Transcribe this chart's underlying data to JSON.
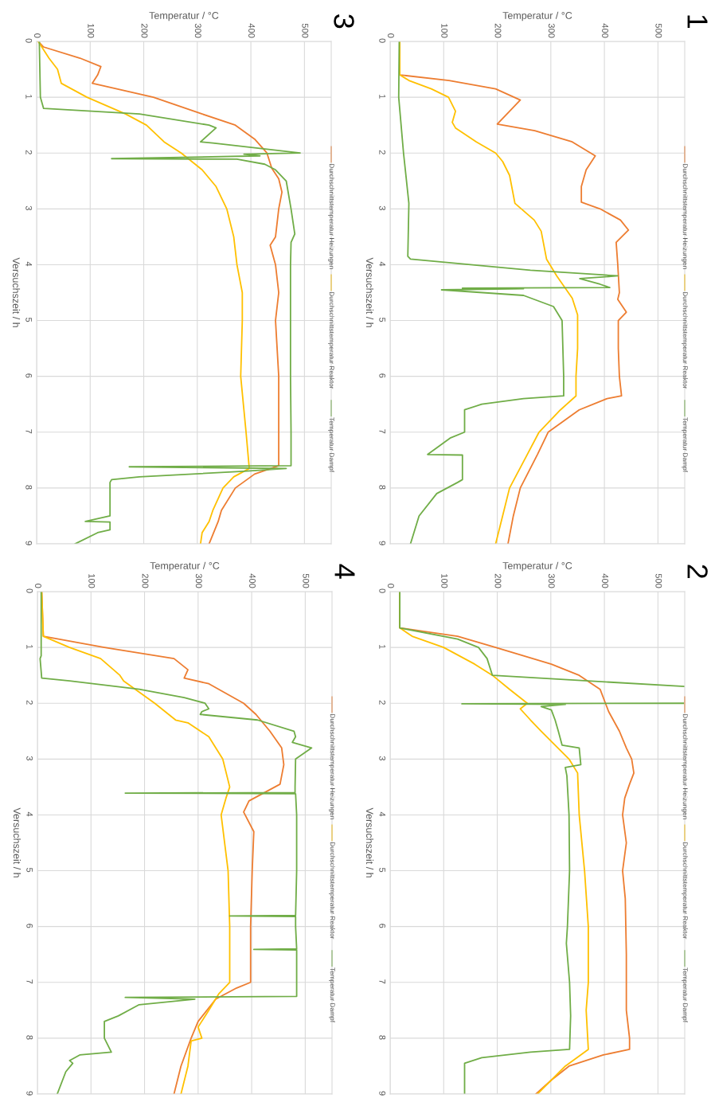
{
  "chart_data": [
    {
      "type": "line",
      "title": "1",
      "xlabel": "Temperatur / °C",
      "ylabel": "Versuchszeit / h",
      "xlim": [
        0,
        550
      ],
      "xticks": [
        0,
        100,
        200,
        300,
        400,
        500
      ],
      "ylim": [
        9,
        0
      ],
      "yticks": [
        0,
        1,
        2,
        3,
        4,
        5,
        6,
        7,
        8,
        9
      ],
      "grid": true,
      "legend": "right",
      "series": [
        {
          "name": "Durchschnittstemperatur Heizungen",
          "color": "#ed7d31",
          "values": [
            0,
            0.6,
            0.7,
            0.85,
            1.05,
            1.48,
            1.6,
            1.8,
            2.05,
            2.3,
            2.6,
            2.88,
            3.0,
            3.2,
            3.38,
            3.6,
            4.0,
            4.5,
            4.62,
            4.85,
            5.0,
            5.5,
            6.0,
            6.35,
            6.4,
            6.6,
            7.0,
            7.4,
            8.0,
            8.5,
            9.0
          ],
          "x": [
            18,
            18,
            110,
            197,
            243,
            200,
            270,
            340,
            383,
            366,
            357,
            357,
            392,
            430,
            445,
            422,
            425,
            428,
            425,
            441,
            426,
            426,
            428,
            432,
            405,
            353,
            295,
            275,
            243,
            230,
            220
          ]
        },
        {
          "name": "Durchschnittstemperatur Reaktor",
          "color": "#ffc000",
          "values": [
            0,
            0.6,
            0.7,
            0.85,
            1.0,
            1.25,
            1.45,
            1.55,
            1.8,
            2.0,
            2.15,
            2.4,
            2.9,
            3.2,
            3.4,
            3.9,
            4.2,
            4.6,
            4.9,
            5.5,
            6.0,
            6.35,
            6.6,
            7.0,
            7.4,
            8.0,
            8.5,
            9.0
          ],
          "x": [
            18,
            18,
            35,
            77,
            109,
            122,
            116,
            122,
            161,
            197,
            210,
            223,
            233,
            269,
            282,
            292,
            311,
            340,
            350,
            350,
            347,
            347,
            318,
            278,
            256,
            223,
            210,
            197
          ]
        },
        {
          "name": "Temperatur Dampf",
          "color": "#70ad47",
          "values": [
            0,
            1.0,
            2.0,
            2.9,
            3.85,
            3.9,
            4.1,
            4.2,
            4.25,
            4.35,
            4.41,
            4.42,
            4.43,
            4.45,
            4.55,
            4.75,
            5.0,
            6.0,
            6.35,
            6.4,
            6.5,
            6.6,
            7.0,
            7.1,
            7.4,
            7.41,
            7.85,
            7.9,
            8.1,
            8.5,
            9.0
          ],
          "x": [
            17,
            16,
            25,
            35,
            33,
            38,
            262,
            425,
            354,
            392,
            410,
            135,
            249,
            96,
            249,
            305,
            321,
            324,
            324,
            249,
            171,
            139,
            139,
            113,
            70,
            135,
            135,
            126,
            87,
            54,
            38
          ]
        }
      ]
    },
    {
      "type": "line",
      "title": "2",
      "xlabel": "Temperatur / °C",
      "ylabel": "Versuchszeit / h",
      "xlim": [
        0,
        550
      ],
      "xticks": [
        0,
        100,
        200,
        300,
        400,
        500
      ],
      "ylim": [
        9,
        0
      ],
      "yticks": [
        0,
        1,
        2,
        3,
        4,
        5,
        6,
        7,
        8,
        9
      ],
      "grid": true,
      "legend": "right",
      "series": [
        {
          "name": "Durchschnittstemperatur Heizungen",
          "color": "#ed7d31",
          "values": [
            0,
            0.65,
            0.8,
            1.0,
            1.3,
            1.5,
            1.75,
            2.0,
            2.15,
            2.5,
            2.8,
            3.0,
            3.25,
            3.45,
            3.7,
            4.0,
            4.5,
            5.0,
            5.5,
            6.5,
            7.5,
            8.0,
            8.2,
            8.3,
            8.5,
            8.75,
            9.0
          ],
          "x": [
            18,
            18,
            126,
            197,
            301,
            353,
            392,
            402,
            408,
            428,
            441,
            451,
            455,
            447,
            438,
            434,
            441,
            434,
            439,
            441,
            441,
            447,
            447,
            398,
            334,
            301,
            272
          ]
        },
        {
          "name": "Durchschnittstemperatur Reaktor",
          "color": "#ffc000",
          "values": [
            0,
            0.65,
            0.8,
            1.0,
            1.3,
            1.5,
            1.75,
            2.0,
            2.1,
            2.3,
            2.5,
            2.75,
            3.0,
            3.25,
            4.0,
            5.0,
            6.0,
            7.0,
            7.5,
            8.2,
            8.5,
            9.0
          ],
          "x": [
            18,
            18,
            41,
            100,
            158,
            191,
            223,
            256,
            243,
            262,
            282,
            308,
            334,
            350,
            353,
            363,
            370,
            370,
            366,
            370,
            327,
            275
          ]
        },
        {
          "name": "Temperatur Dampf",
          "color": "#70ad47",
          "values": [
            0,
            0.65,
            0.85,
            1.0,
            1.2,
            1.5,
            1.7,
            null,
            2.0,
            2.01,
            2.02,
            2.06,
            2.12,
            2.3,
            2.5,
            2.75,
            2.8,
            3.1,
            3.15,
            3.3,
            4.0,
            5.0,
            6.0,
            6.3,
            7.0,
            7.6,
            8.2,
            8.25,
            8.35,
            8.45,
            9.0
          ],
          "x": [
            18,
            18,
            126,
            165,
            181,
            191,
            550,
            null,
            550,
            134,
            327,
            282,
            301,
            308,
            314,
            321,
            353,
            356,
            327,
            330,
            334,
            335,
            331,
            329,
            335,
            337,
            335,
            262,
            171,
            139,
            139
          ]
        }
      ]
    },
    {
      "type": "line",
      "title": "3",
      "xlabel": "Temperatur / °C",
      "ylabel": "Versuchszeit / h",
      "xlim": [
        0,
        550
      ],
      "xticks": [
        0,
        100,
        200,
        300,
        400,
        500
      ],
      "ylim": [
        9,
        0
      ],
      "yticks": [
        0,
        1,
        2,
        3,
        4,
        5,
        6,
        7,
        8,
        9
      ],
      "grid": true,
      "legend": "right",
      "series": [
        {
          "name": "Durchschnittstemperatur Heizungen",
          "color": "#ed7d31",
          "values": [
            0,
            0.1,
            0.3,
            0.45,
            0.6,
            0.75,
            0.8,
            1.0,
            1.3,
            1.5,
            1.75,
            2.0,
            2.27,
            2.46,
            2.7,
            3.0,
            3.5,
            3.65,
            4.0,
            4.5,
            5.0,
            5.5,
            6.0,
            7.0,
            7.6,
            7.75,
            8.0,
            8.4,
            8.6,
            9.0
          ],
          "x": [
            3,
            13,
            81,
            120,
            114,
            104,
            127,
            218,
            309,
            371,
            407,
            430,
            439,
            452,
            458,
            452,
            446,
            436,
            446,
            452,
            446,
            449,
            452,
            452,
            452,
            407,
            371,
            345,
            339,
            322
          ]
        },
        {
          "name": "Durchschnittstemperatur Reaktor",
          "color": "#ffc000",
          "values": [
            0,
            0.3,
            0.5,
            0.75,
            1.0,
            1.3,
            1.5,
            1.8,
            2.0,
            2.3,
            2.6,
            3.0,
            3.5,
            4.0,
            4.5,
            5.0,
            6.0,
            7.0,
            7.65,
            7.8,
            8.0,
            8.4,
            8.6,
            8.8,
            9.0
          ],
          "x": [
            3,
            23,
            39,
            46,
            94,
            166,
            205,
            238,
            270,
            309,
            335,
            355,
            368,
            374,
            384,
            384,
            381,
            391,
            397,
            368,
            348,
            329,
            322,
            309,
            306
          ]
        },
        {
          "name": "Temperatur Dampf",
          "color": "#70ad47",
          "values": [
            0,
            1.0,
            1.2,
            1.3,
            1.5,
            1.55,
            1.8,
            1.82,
            2.0,
            2.02,
            2.05,
            2.1,
            2.11,
            2.2,
            2.3,
            2.5,
            3.0,
            3.45,
            3.6,
            4.0,
            5.0,
            6.0,
            7.0,
            7.6,
            7.62,
            7.65,
            7.7,
            7.8,
            7.85,
            7.9,
            8.5,
            8.6,
            8.61,
            8.75,
            8.8,
            9.0
          ],
          "x": [
            5,
            7,
            13,
            192,
            322,
            335,
            306,
            329,
            492,
            387,
            417,
            140,
            374,
            426,
            446,
            466,
            475,
            482,
            475,
            474,
            474,
            474,
            475,
            475,
            173,
            466,
            387,
            192,
            140,
            137,
            137,
            91,
            137,
            137,
            114,
            72
          ]
        }
      ]
    },
    {
      "type": "line",
      "title": "4",
      "xlabel": "Temperatur / °C",
      "ylabel": "Versuchszeit / h",
      "xlim": [
        0,
        550
      ],
      "xticks": [
        0,
        100,
        200,
        300,
        400,
        500
      ],
      "ylim": [
        9,
        0
      ],
      "yticks": [
        0,
        1,
        2,
        3,
        4,
        5,
        6,
        7,
        8,
        9
      ],
      "grid": true,
      "legend": "right",
      "series": [
        {
          "name": "Durchschnittstemperatur Heizungen",
          "color": "#ed7d31",
          "values": [
            0,
            0.8,
            1.0,
            1.2,
            1.4,
            1.55,
            1.65,
            2.0,
            2.2,
            2.5,
            2.8,
            3.1,
            3.45,
            3.6,
            3.75,
            3.95,
            4.3,
            5.0,
            6.0,
            7.0,
            7.1,
            7.3,
            7.7,
            8.0,
            8.5,
            9.0
          ],
          "x": [
            8,
            11,
            125,
            255,
            281,
            274,
            320,
            385,
            408,
            434,
            456,
            460,
            453,
            424,
            395,
            385,
            404,
            401,
            398,
            398,
            372,
            333,
            300,
            287,
            268,
            255
          ]
        },
        {
          "name": "Durchschnittstemperatur Reaktor",
          "color": "#ffc000",
          "values": [
            0,
            0.8,
            1.0,
            1.2,
            1.5,
            1.6,
            2.0,
            2.3,
            2.35,
            2.6,
            3.0,
            3.5,
            3.7,
            4.0,
            5.0,
            6.0,
            7.0,
            7.2,
            7.5,
            7.8,
            8.0,
            8.05,
            8.5,
            9.0
          ],
          "x": [
            8,
            11,
            60,
            118,
            154,
            161,
            219,
            258,
            281,
            320,
            346,
            359,
            352,
            343,
            356,
            359,
            359,
            339,
            320,
            300,
            307,
            287,
            281,
            268
          ]
        },
        {
          "name": "Temperatur Dampf",
          "color": "#70ad47",
          "values": [
            0,
            1.15,
            1.2,
            1.55,
            1.6,
            1.75,
            1.9,
            2.0,
            2.1,
            2.15,
            2.2,
            2.3,
            2.5,
            2.6,
            2.7,
            2.8,
            3.0,
            3.5,
            3.6,
            3.61,
            3.62,
            4.0,
            5.0,
            5.8,
            5.81,
            5.82,
            6.0,
            6.4,
            6.41,
            6.42,
            7.0,
            7.25,
            7.27,
            7.3,
            7.4,
            7.6,
            7.7,
            8.0,
            8.25,
            8.3,
            8.4,
            8.45,
            8.6,
            9.0
          ],
          "x": [
            7,
            7,
            5,
            8,
            60,
            190,
            274,
            313,
            320,
            307,
            304,
            411,
            479,
            482,
            476,
            512,
            482,
            481,
            481,
            164,
            482,
            484,
            484,
            482,
            359,
            482,
            482,
            484,
            404,
            484,
            484,
            484,
            164,
            294,
            190,
            151,
            125,
            125,
            138,
            79,
            60,
            66,
            53,
            37
          ]
        }
      ]
    }
  ]
}
